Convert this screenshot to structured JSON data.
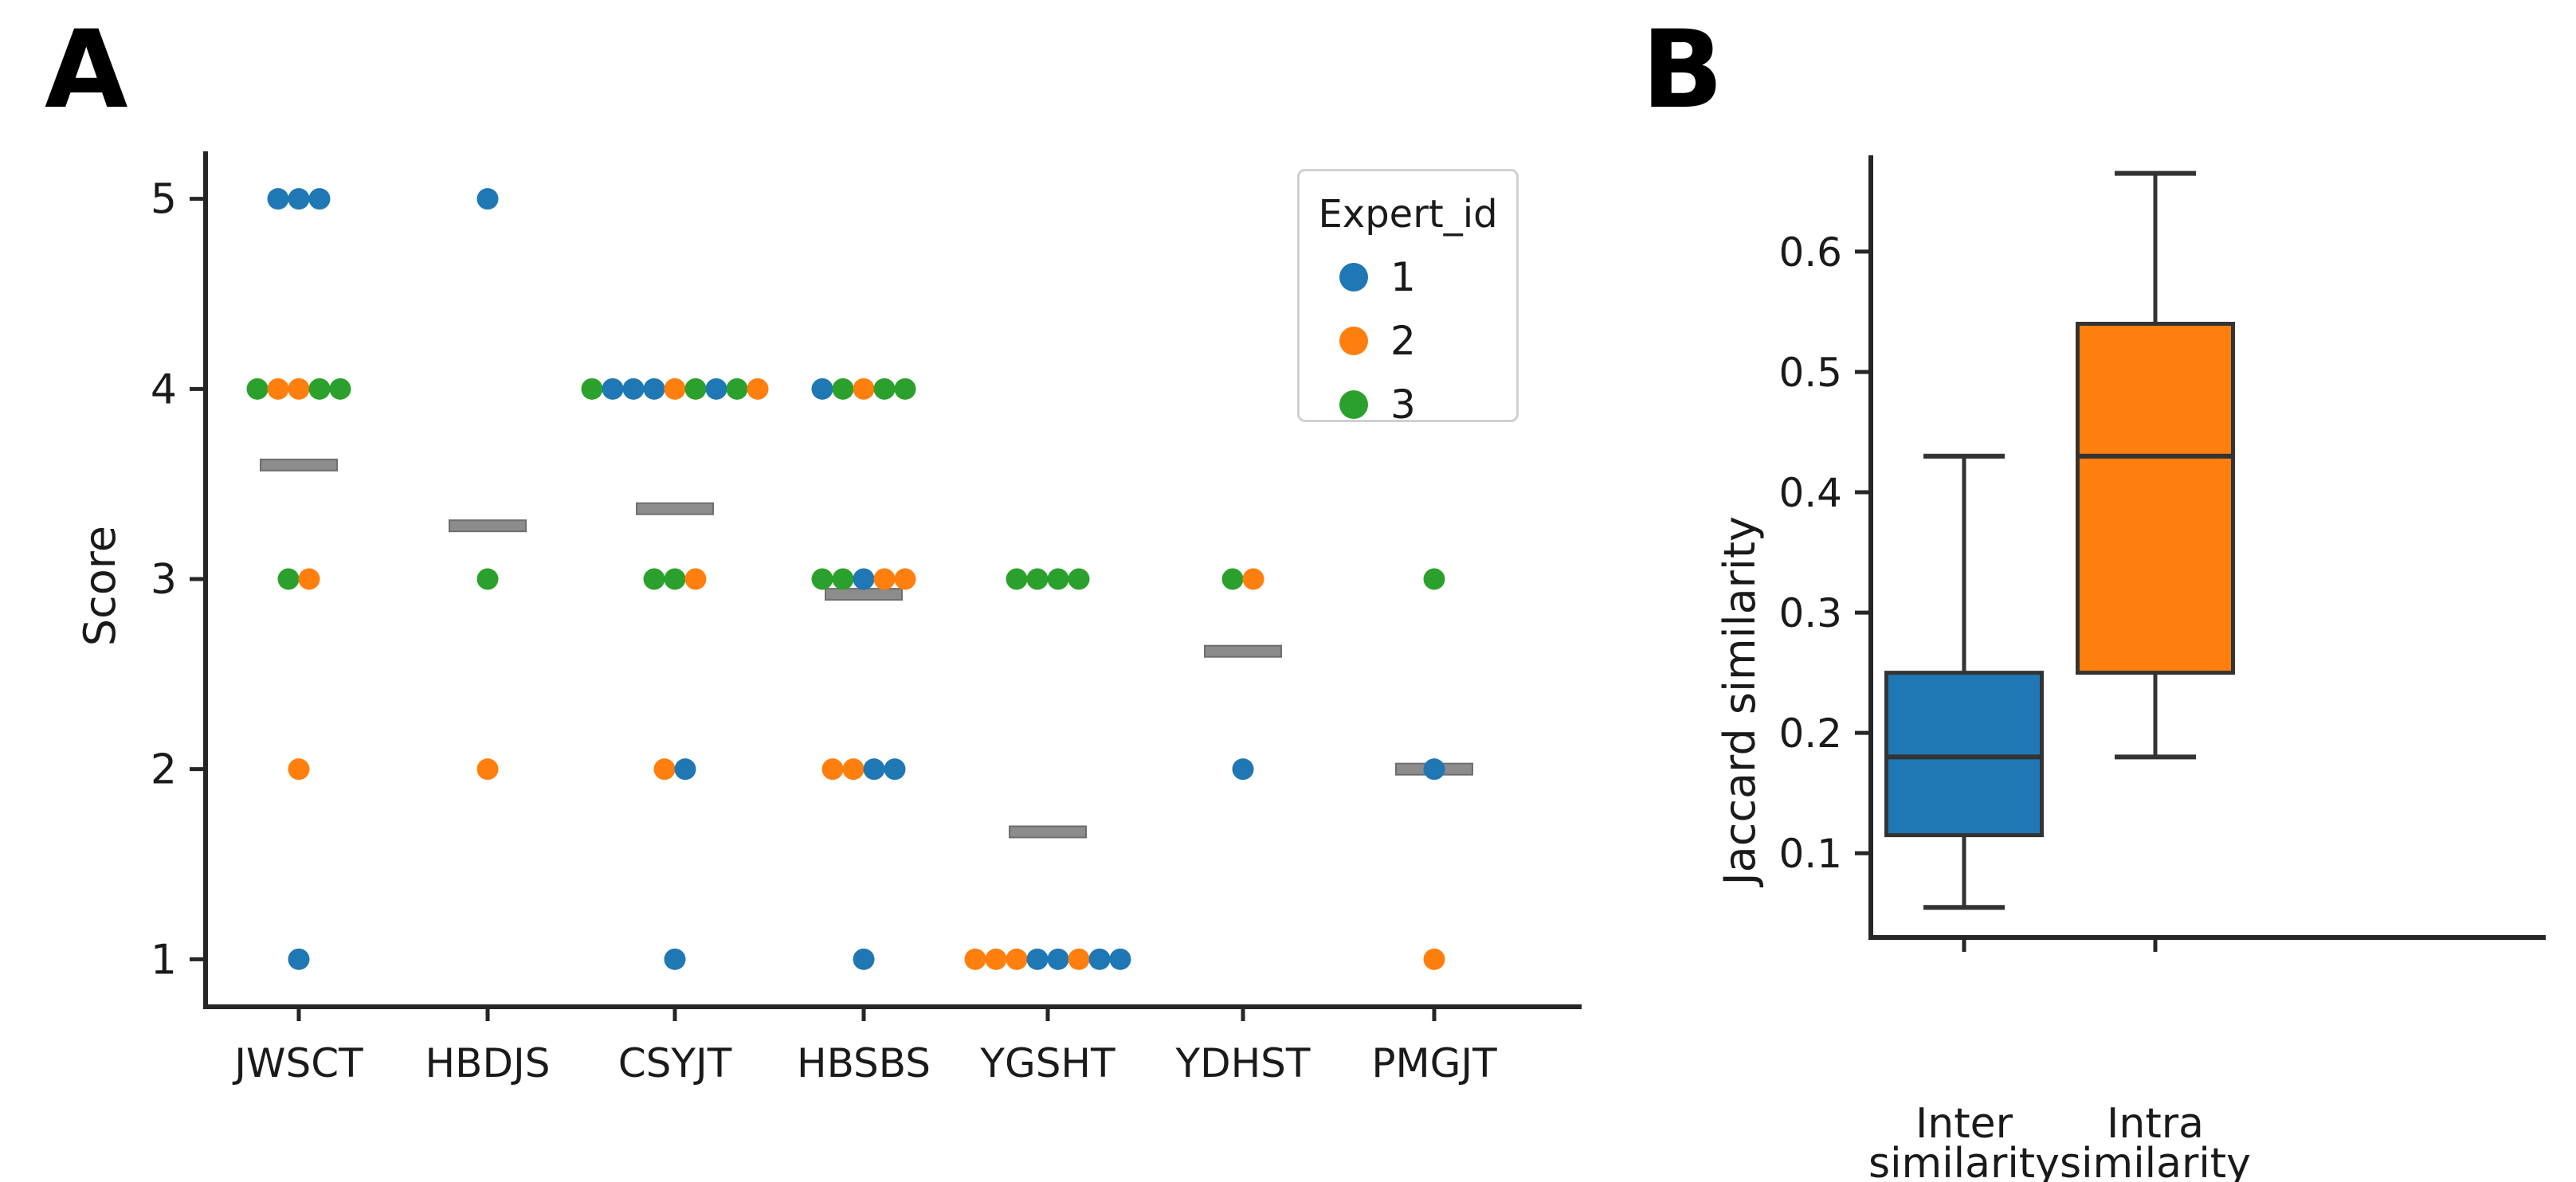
{
  "panels": {
    "a": {
      "letter": "A"
    },
    "b": {
      "letter": "B"
    }
  },
  "chart_data": [
    {
      "id": "expert-scores-swarm",
      "type": "scatter",
      "panel": "A",
      "title": "",
      "xlabel": "",
      "ylabel": "Score",
      "categories": [
        "JWSCT",
        "HBDJS",
        "CSYJT",
        "HBSBS",
        "YGSHT",
        "YDHST",
        "PMGJT"
      ],
      "y_ticks": [
        1,
        2,
        3,
        4,
        5
      ],
      "ylim": [
        0.75,
        5.25
      ],
      "grid": false,
      "legend": {
        "title": "Expert_id",
        "position": "upper right",
        "entries": [
          {
            "label": "1",
            "color": "#1f77b4"
          },
          {
            "label": "2",
            "color": "#ff7f0e"
          },
          {
            "label": "3",
            "color": "#2ca02c"
          }
        ]
      },
      "mean_marker_color": "#8c8c8c",
      "mean_marker_edge": "#6e6e6e",
      "swarms": [
        {
          "category": "JWSCT",
          "mean": 3.6,
          "rows": [
            {
              "score": 5,
              "experts": [
                1,
                1,
                1
              ]
            },
            {
              "score": 4,
              "experts": [
                3,
                2,
                2,
                3,
                3
              ]
            },
            {
              "score": 3,
              "experts": [
                3,
                2
              ]
            },
            {
              "score": 2,
              "experts": [
                2
              ]
            },
            {
              "score": 1,
              "experts": [
                1
              ]
            }
          ]
        },
        {
          "category": "HBDJS",
          "mean": 3.28,
          "rows": [
            {
              "score": 5,
              "experts": [
                1
              ]
            },
            {
              "score": 3,
              "experts": [
                3
              ]
            },
            {
              "score": 2,
              "experts": [
                2
              ]
            }
          ]
        },
        {
          "category": "CSYJT",
          "mean": 3.37,
          "rows": [
            {
              "score": 4,
              "experts": [
                3,
                1,
                1,
                1,
                2,
                3,
                1,
                3,
                2
              ]
            },
            {
              "score": 3,
              "experts": [
                3,
                3,
                2
              ]
            },
            {
              "score": 2,
              "experts": [
                2,
                1
              ]
            },
            {
              "score": 1,
              "experts": [
                1
              ]
            }
          ]
        },
        {
          "category": "HBSBS",
          "mean": 2.92,
          "rows": [
            {
              "score": 4,
              "experts": [
                1,
                3,
                2,
                3,
                3
              ]
            },
            {
              "score": 3,
              "experts": [
                3,
                3,
                1,
                2,
                2
              ]
            },
            {
              "score": 2,
              "experts": [
                2,
                2,
                1,
                1
              ]
            },
            {
              "score": 1,
              "experts": [
                1
              ]
            }
          ]
        },
        {
          "category": "YGSHT",
          "mean": 1.67,
          "rows": [
            {
              "score": 3,
              "experts": [
                3,
                3,
                3,
                3
              ]
            },
            {
              "score": 1,
              "experts": [
                2,
                2,
                2,
                1,
                1,
                2,
                1,
                1
              ]
            }
          ]
        },
        {
          "category": "YDHST",
          "mean": 2.62,
          "rows": [
            {
              "score": 3,
              "experts": [
                3,
                2
              ]
            },
            {
              "score": 2,
              "experts": [
                1
              ]
            }
          ]
        },
        {
          "category": "PMGJT",
          "mean": 2.0,
          "rows": [
            {
              "score": 3,
              "experts": [
                3
              ]
            },
            {
              "score": 2,
              "experts": [
                1
              ]
            },
            {
              "score": 1,
              "experts": [
                2
              ]
            }
          ]
        }
      ]
    },
    {
      "id": "jaccard-similarity-boxplot",
      "type": "box",
      "panel": "B",
      "title": "",
      "xlabel": "",
      "ylabel": "Jaccard similarity",
      "y_ticks": [
        0.1,
        0.2,
        0.3,
        0.4,
        0.5,
        0.6
      ],
      "ylim": [
        0.03,
        0.68
      ],
      "grid": false,
      "boxes": [
        {
          "label_line1": "Inter",
          "label_line2": "similarity",
          "color": "#1f77b4",
          "whisker_low": 0.055,
          "q1": 0.115,
          "median": 0.18,
          "q3": 0.25,
          "whisker_high": 0.43
        },
        {
          "label_line1": "Intra",
          "label_line2": "similarity",
          "color": "#ff7f0e",
          "whisker_low": 0.18,
          "q1": 0.25,
          "median": 0.43,
          "q3": 0.54,
          "whisker_high": 0.665
        }
      ]
    }
  ]
}
